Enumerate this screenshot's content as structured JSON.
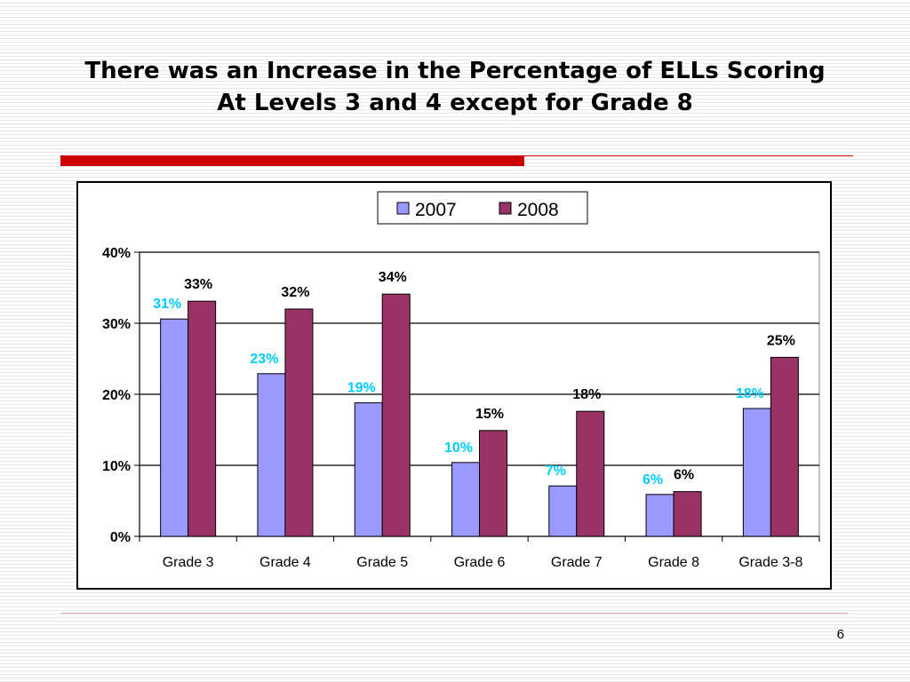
{
  "slide": {
    "title_line1": "There was an Increase in the Percentage of ELLs Scoring",
    "title_line2": "At Levels 3 and 4 except for Grade 8",
    "page_number": "6",
    "accent_color": "#cc0000"
  },
  "chart_data": {
    "type": "bar",
    "title": "",
    "xlabel": "",
    "ylabel": "",
    "categories": [
      "Grade 3",
      "Grade 4",
      "Grade 5",
      "Grade 6",
      "Grade 7",
      "Grade 8",
      "Grade 3-8"
    ],
    "series": [
      {
        "name": "2007",
        "color": "#9999ff",
        "label_color": "#00ccff",
        "values": [
          30.6,
          22.9,
          18.8,
          10.4,
          7.1,
          5.9,
          18.0
        ],
        "labels": [
          "31%",
          "23%",
          "19%",
          "10%",
          "7%",
          "6%",
          "18%"
        ]
      },
      {
        "name": "2008",
        "color": "#993366",
        "label_color": "#000000",
        "values": [
          33.1,
          32.0,
          34.1,
          14.9,
          17.6,
          6.3,
          25.2
        ],
        "labels": [
          "33%",
          "32%",
          "34%",
          "15%",
          "18%",
          "6%",
          "25%"
        ]
      }
    ],
    "ylim": [
      0,
      40
    ],
    "yticks": [
      0,
      10,
      20,
      30,
      40
    ],
    "ytick_labels": [
      "0%",
      "10%",
      "20%",
      "30%",
      "40%"
    ],
    "grid": true,
    "legend_position": "top-center"
  }
}
